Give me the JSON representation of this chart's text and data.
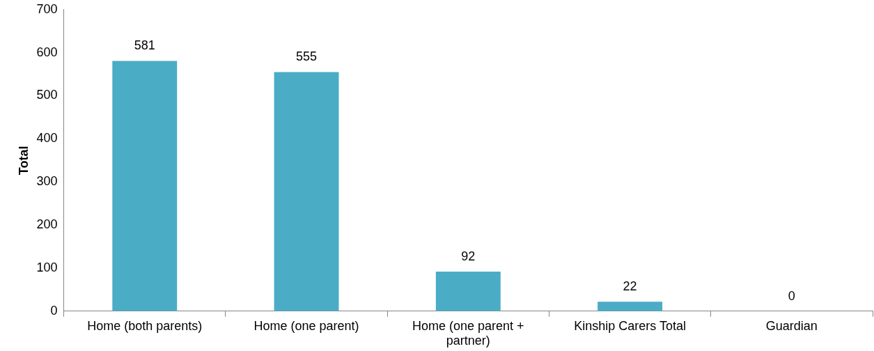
{
  "chart_data": {
    "type": "bar",
    "ylabel": "Total",
    "categories": [
      "Home (both parents)",
      "Home (one parent)",
      "Home (one parent + partner)",
      "Kinship Carers Total",
      "Guardian"
    ],
    "values": [
      581,
      555,
      92,
      22,
      0
    ],
    "color": "#4bacc6",
    "ylim": [
      0,
      700
    ],
    "yticks": [
      0,
      100,
      200,
      300,
      400,
      500,
      600,
      700
    ],
    "grid": false,
    "legend": false,
    "data_labels": true
  }
}
